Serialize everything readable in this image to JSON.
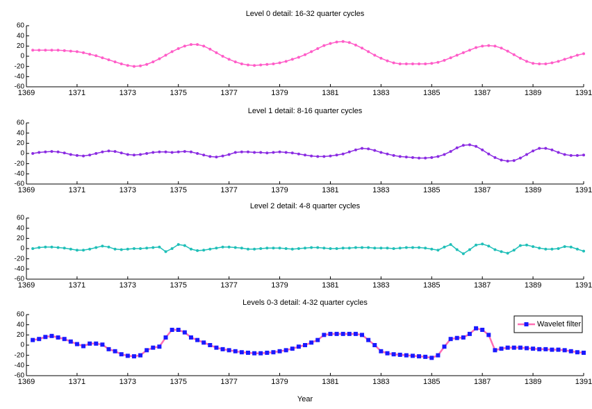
{
  "chart_data": [
    {
      "type": "line",
      "title": "Level 0 detail: 16-32 quarter cycles",
      "x": [
        1369.25,
        1369.5,
        1369.75,
        1370,
        1370.25,
        1370.5,
        1370.75,
        1371,
        1371.25,
        1371.5,
        1371.75,
        1372,
        1372.25,
        1372.5,
        1372.75,
        1373,
        1373.25,
        1373.5,
        1373.75,
        1374,
        1374.25,
        1374.5,
        1374.75,
        1375,
        1375.25,
        1375.5,
        1375.75,
        1376,
        1376.25,
        1376.5,
        1376.75,
        1377,
        1377.25,
        1377.5,
        1377.75,
        1378,
        1378.25,
        1378.5,
        1378.75,
        1379,
        1379.25,
        1379.5,
        1379.75,
        1380,
        1380.25,
        1380.5,
        1380.75,
        1381,
        1381.25,
        1381.5,
        1381.75,
        1382,
        1382.25,
        1382.5,
        1382.75,
        1383,
        1383.25,
        1383.5,
        1383.75,
        1384,
        1384.25,
        1384.5,
        1384.75,
        1385,
        1385.25,
        1385.5,
        1385.75,
        1386,
        1386.25,
        1386.5,
        1386.75,
        1387,
        1387.25,
        1387.5,
        1387.75,
        1388,
        1388.25,
        1388.5,
        1388.75,
        1389,
        1389.25,
        1389.5,
        1389.75,
        1390,
        1390.25,
        1390.5,
        1390.75,
        1391
      ],
      "series": [
        {
          "color": "#ff5cc8",
          "values": [
            12,
            12,
            12,
            12,
            12,
            11,
            10,
            9,
            7,
            4,
            1,
            -3,
            -7,
            -11,
            -15,
            -18,
            -20,
            -19,
            -16,
            -11,
            -5,
            2,
            9,
            15,
            20,
            23,
            23,
            20,
            14,
            7,
            0,
            -6,
            -11,
            -15,
            -17,
            -18,
            -17,
            -16,
            -15,
            -13,
            -10,
            -6,
            -2,
            3,
            9,
            15,
            21,
            25,
            28,
            29,
            27,
            22,
            16,
            9,
            2,
            -4,
            -9,
            -13,
            -15,
            -15,
            -15,
            -15,
            -15,
            -14,
            -12,
            -8,
            -3,
            2,
            7,
            12,
            17,
            20,
            21,
            20,
            16,
            10,
            3,
            -4,
            -10,
            -14,
            -15,
            -15,
            -13,
            -10,
            -6,
            -2,
            2,
            5
          ]
        }
      ],
      "xlim": [
        1369,
        1391
      ],
      "xticks": [
        1369,
        1371,
        1373,
        1375,
        1377,
        1379,
        1381,
        1383,
        1385,
        1387,
        1389,
        1391
      ],
      "ylim": [
        -60,
        60
      ],
      "yticks": [
        -60,
        -40,
        -20,
        0,
        20,
        40,
        60
      ]
    },
    {
      "type": "line",
      "title": "Level 1 detail: 8-16 quarter cycles",
      "x": [
        1369.25,
        1369.5,
        1369.75,
        1370,
        1370.25,
        1370.5,
        1370.75,
        1371,
        1371.25,
        1371.5,
        1371.75,
        1372,
        1372.25,
        1372.5,
        1372.75,
        1373,
        1373.25,
        1373.5,
        1373.75,
        1374,
        1374.25,
        1374.5,
        1374.75,
        1375,
        1375.25,
        1375.5,
        1375.75,
        1376,
        1376.25,
        1376.5,
        1376.75,
        1377,
        1377.25,
        1377.5,
        1377.75,
        1378,
        1378.25,
        1378.5,
        1378.75,
        1379,
        1379.25,
        1379.5,
        1379.75,
        1380,
        1380.25,
        1380.5,
        1380.75,
        1381,
        1381.25,
        1381.5,
        1381.75,
        1382,
        1382.25,
        1382.5,
        1382.75,
        1383,
        1383.25,
        1383.5,
        1383.75,
        1384,
        1384.25,
        1384.5,
        1384.75,
        1385,
        1385.25,
        1385.5,
        1385.75,
        1386,
        1386.25,
        1386.5,
        1386.75,
        1387,
        1387.25,
        1387.5,
        1387.75,
        1388,
        1388.25,
        1388.5,
        1388.75,
        1389,
        1389.25,
        1389.5,
        1389.75,
        1390,
        1390.25,
        1390.5,
        1390.75,
        1391
      ],
      "series": [
        {
          "color": "#8a2be2",
          "values": [
            0,
            2,
            3,
            4,
            3,
            1,
            -2,
            -4,
            -5,
            -3,
            0,
            3,
            5,
            4,
            1,
            -2,
            -3,
            -2,
            0,
            2,
            3,
            3,
            2,
            3,
            4,
            3,
            0,
            -3,
            -6,
            -7,
            -5,
            -2,
            2,
            3,
            3,
            2,
            2,
            1,
            2,
            3,
            2,
            1,
            -1,
            -3,
            -5,
            -6,
            -6,
            -5,
            -3,
            -1,
            3,
            7,
            10,
            9,
            6,
            2,
            -1,
            -4,
            -6,
            -7,
            -8,
            -9,
            -9,
            -8,
            -6,
            -2,
            4,
            11,
            16,
            17,
            14,
            7,
            -1,
            -8,
            -13,
            -15,
            -14,
            -9,
            -2,
            5,
            10,
            10,
            7,
            2,
            -2,
            -4,
            -4,
            -3
          ]
        }
      ],
      "xlim": [
        1369,
        1391
      ],
      "xticks": [
        1369,
        1371,
        1373,
        1375,
        1377,
        1379,
        1381,
        1383,
        1385,
        1387,
        1389,
        1391
      ],
      "ylim": [
        -60,
        60
      ],
      "yticks": [
        -60,
        -40,
        -20,
        0,
        20,
        40,
        60
      ]
    },
    {
      "type": "line",
      "title": "Level 2 detail: 4-8 quarter cycles",
      "x": [
        1369.25,
        1369.5,
        1369.75,
        1370,
        1370.25,
        1370.5,
        1370.75,
        1371,
        1371.25,
        1371.5,
        1371.75,
        1372,
        1372.25,
        1372.5,
        1372.75,
        1373,
        1373.25,
        1373.5,
        1373.75,
        1374,
        1374.25,
        1374.5,
        1374.75,
        1375,
        1375.25,
        1375.5,
        1375.75,
        1376,
        1376.25,
        1376.5,
        1376.75,
        1377,
        1377.25,
        1377.5,
        1377.75,
        1378,
        1378.25,
        1378.5,
        1378.75,
        1379,
        1379.25,
        1379.5,
        1379.75,
        1380,
        1380.25,
        1380.5,
        1380.75,
        1381,
        1381.25,
        1381.5,
        1381.75,
        1382,
        1382.25,
        1382.5,
        1382.75,
        1383,
        1383.25,
        1383.5,
        1383.75,
        1384,
        1384.25,
        1384.5,
        1384.75,
        1385,
        1385.25,
        1385.5,
        1385.75,
        1386,
        1386.25,
        1386.5,
        1386.75,
        1387,
        1387.25,
        1387.5,
        1387.75,
        1388,
        1388.25,
        1388.5,
        1388.75,
        1389,
        1389.25,
        1389.5,
        1389.75,
        1390,
        1390.25,
        1390.5,
        1390.75,
        1391
      ],
      "series": [
        {
          "color": "#1fbfb8",
          "values": [
            0,
            2,
            3,
            3,
            2,
            1,
            -1,
            -3,
            -3,
            -1,
            2,
            5,
            3,
            -1,
            -2,
            -1,
            0,
            0,
            1,
            2,
            3,
            -6,
            0,
            8,
            6,
            -1,
            -4,
            -3,
            -1,
            1,
            3,
            3,
            2,
            1,
            -1,
            -1,
            0,
            1,
            1,
            1,
            0,
            -1,
            0,
            1,
            2,
            2,
            1,
            0,
            0,
            1,
            1,
            2,
            2,
            2,
            1,
            1,
            1,
            0,
            1,
            2,
            2,
            2,
            1,
            -1,
            -3,
            3,
            8,
            -2,
            -10,
            -2,
            7,
            9,
            5,
            -2,
            -6,
            -9,
            -3,
            6,
            7,
            4,
            1,
            -1,
            -1,
            0,
            4,
            3,
            -1,
            -5
          ]
        }
      ],
      "xlim": [
        1369,
        1391
      ],
      "xticks": [
        1369,
        1371,
        1373,
        1375,
        1377,
        1379,
        1381,
        1383,
        1385,
        1387,
        1389,
        1391
      ],
      "ylim": [
        -60,
        60
      ],
      "yticks": [
        -60,
        -40,
        -20,
        0,
        20,
        40,
        60
      ]
    },
    {
      "type": "line",
      "title": "Levels 0-3 detail: 4-32 quarter cycles",
      "xlabel": "Year",
      "legend": "upper right",
      "x": [
        1369.25,
        1369.5,
        1369.75,
        1370,
        1370.25,
        1370.5,
        1370.75,
        1371,
        1371.25,
        1371.5,
        1371.75,
        1372,
        1372.25,
        1372.5,
        1372.75,
        1373,
        1373.25,
        1373.5,
        1373.75,
        1374,
        1374.25,
        1374.5,
        1374.75,
        1375,
        1375.25,
        1375.5,
        1375.75,
        1376,
        1376.25,
        1376.5,
        1376.75,
        1377,
        1377.25,
        1377.5,
        1377.75,
        1378,
        1378.25,
        1378.5,
        1378.75,
        1379,
        1379.25,
        1379.5,
        1379.75,
        1380,
        1380.25,
        1380.5,
        1380.75,
        1381,
        1381.25,
        1381.5,
        1381.75,
        1382,
        1382.25,
        1382.5,
        1382.75,
        1383,
        1383.25,
        1383.5,
        1383.75,
        1384,
        1384.25,
        1384.5,
        1384.75,
        1385,
        1385.25,
        1385.5,
        1385.75,
        1386,
        1386.25,
        1386.5,
        1386.75,
        1387,
        1387.25,
        1387.5,
        1387.75,
        1388,
        1388.25,
        1388.5,
        1388.75,
        1389,
        1389.25,
        1389.5,
        1389.75,
        1390,
        1390.25,
        1390.5,
        1390.75,
        1391
      ],
      "series": [
        {
          "name": "Wavelet filter",
          "color": "#ff6eb4",
          "marker_color": "#1a1aff",
          "values": [
            10,
            12,
            16,
            18,
            15,
            12,
            7,
            2,
            -2,
            3,
            3,
            1,
            -8,
            -12,
            -18,
            -21,
            -22,
            -20,
            -10,
            -5,
            -3,
            15,
            30,
            30,
            25,
            15,
            10,
            5,
            0,
            -5,
            -8,
            -10,
            -12,
            -14,
            -15,
            -16,
            -16,
            -15,
            -14,
            -12,
            -10,
            -7,
            -3,
            0,
            5,
            10,
            20,
            22,
            22,
            22,
            22,
            22,
            20,
            10,
            0,
            -12,
            -16,
            -18,
            -19,
            -20,
            -21,
            -22,
            -23,
            -25,
            -20,
            -3,
            12,
            14,
            15,
            22,
            33,
            30,
            20,
            -10,
            -7,
            -5,
            -5,
            -5,
            -6,
            -7,
            -8,
            -8,
            -9,
            -9,
            -10,
            -12,
            -14,
            -15
          ]
        }
      ],
      "xlim": [
        1369,
        1391
      ],
      "xticks": [
        1369,
        1371,
        1373,
        1375,
        1377,
        1379,
        1381,
        1383,
        1385,
        1387,
        1389,
        1391
      ],
      "ylim": [
        -60,
        60
      ],
      "yticks": [
        -60,
        -40,
        -20,
        0,
        20,
        40,
        60
      ]
    }
  ]
}
